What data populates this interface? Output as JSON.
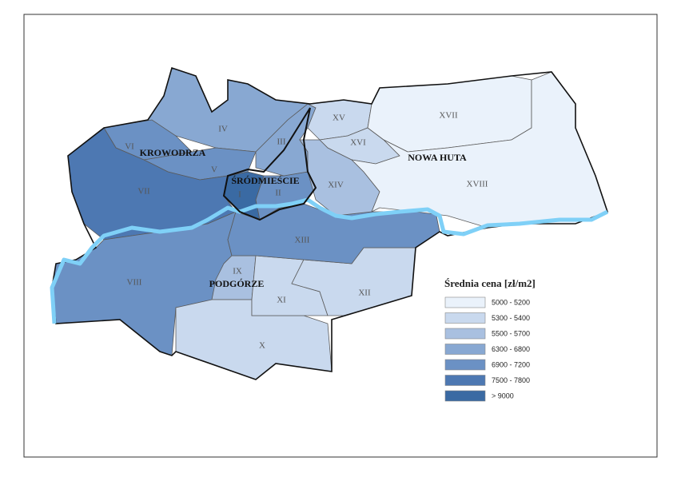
{
  "districts": [
    {
      "label": "I",
      "color": "#3a6aa3"
    },
    {
      "label": "II",
      "color": "#6b91c4"
    },
    {
      "label": "III",
      "color": "#88a8d2"
    },
    {
      "label": "IV",
      "color": "#88a8d2"
    },
    {
      "label": "V",
      "color": "#6b91c4"
    },
    {
      "label": "VI",
      "color": "#6b91c4"
    },
    {
      "label": "VII",
      "color": "#4d78b2"
    },
    {
      "label": "VIII",
      "color": "#6b91c4"
    },
    {
      "label": "IX",
      "color": "#a9c0e0"
    },
    {
      "label": "X",
      "color": "#c9d9ee"
    },
    {
      "label": "XI",
      "color": "#c9d9ee"
    },
    {
      "label": "XII",
      "color": "#c9d9ee"
    },
    {
      "label": "XIII",
      "color": "#6b91c4"
    },
    {
      "label": "XIV",
      "color": "#a9c0e0"
    },
    {
      "label": "XV",
      "color": "#c9d9ee"
    },
    {
      "label": "XVI",
      "color": "#c9d9ee"
    },
    {
      "label": "XVII",
      "color": "#eaf2fb"
    },
    {
      "label": "XVIII",
      "color": "#eaf2fb"
    }
  ],
  "regions": [
    "KROWODRZA",
    "ŚRÓDMIEŚCIE",
    "PODGÓRZE",
    "NOWA HUTA"
  ],
  "legend": {
    "title": "Średnia cena [zł/m2]",
    "items": [
      {
        "label": "5000 - 5200",
        "color": "#eaf2fb"
      },
      {
        "label": "5300 - 5400",
        "color": "#c9d9ee"
      },
      {
        "label": "5500 - 5700",
        "color": "#a9c0e0"
      },
      {
        "label": "6300 - 6800",
        "color": "#88a8d2"
      },
      {
        "label": "6900 - 7200",
        "color": "#6b91c4"
      },
      {
        "label": "7500 - 7800",
        "color": "#4d78b2"
      },
      {
        "label": "> 9000",
        "color": "#3a6aa3"
      }
    ]
  }
}
